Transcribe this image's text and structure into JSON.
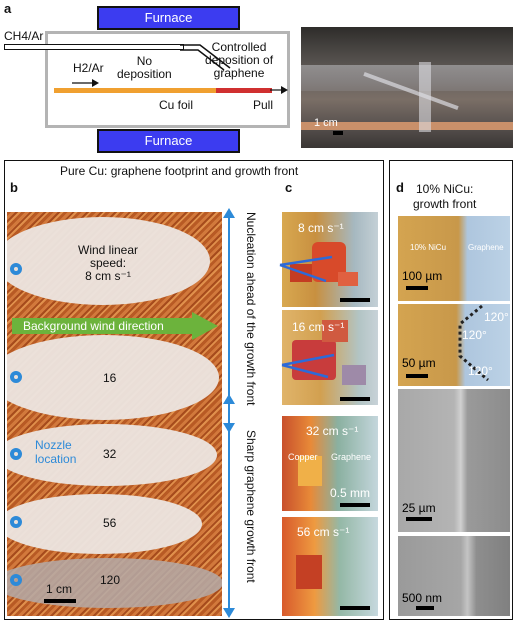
{
  "panel_a": {
    "label": "a",
    "furnace_top": "Furnace",
    "furnace_bottom": "Furnace",
    "gas_inlet": "CH4/Ar",
    "carrier_gas": "H2/Ar",
    "no_deposition": "No\ndeposition",
    "controlled_deposition": "Controlled\ndeposition of\ngraphene",
    "foil_label": "Cu foil",
    "pull_label": "Pull",
    "photo_scale": "1 cm"
  },
  "main_box": {
    "title": "Pure Cu: graphene footprint and growth front"
  },
  "panel_b": {
    "label": "b",
    "wind_text": "Wind linear\nspeed:\n8 cm s⁻¹",
    "background_wind": "Background wind direction",
    "nozzle": "Nozzle\nlocation",
    "speeds": [
      "16",
      "32",
      "56",
      "120"
    ],
    "scale": "1 cm"
  },
  "panel_c": {
    "label": "c",
    "side_top": "Nucleation ahead of the growth front",
    "side_bottom": "Sharp graphene growth front",
    "images": [
      {
        "speed": "8 cm s⁻¹"
      },
      {
        "speed": "16 cm s⁻¹"
      },
      {
        "speed": "32 cm s⁻¹",
        "copper": "Copper",
        "graphene": "Graphene",
        "scale": "0.5 mm"
      },
      {
        "speed": "56 cm s⁻¹"
      }
    ]
  },
  "panel_d": {
    "label": "d",
    "title": "10% NiCu:\ngrowth front",
    "img1": {
      "left": "10% NiCu",
      "right": "Graphene",
      "scale": "100 µm"
    },
    "img2": {
      "scale": "50 µm",
      "angles": [
        "120°",
        "120°",
        "120°"
      ]
    },
    "img3": {
      "scale": "25 µm"
    },
    "img4": {
      "scale": "500 nm"
    }
  }
}
